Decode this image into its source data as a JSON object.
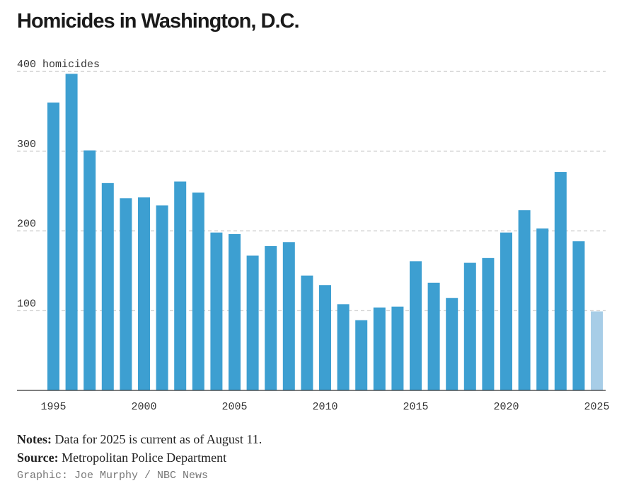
{
  "title": "Homicides in Washington, D.C.",
  "chart_data": {
    "type": "bar",
    "title": "Homicides in Washington, D.C.",
    "unit_label": "homicides",
    "ylim": [
      0,
      400
    ],
    "yticks": [
      100,
      200,
      300,
      400
    ],
    "xticks": [
      1995,
      2000,
      2005,
      2010,
      2015,
      2020,
      2025
    ],
    "grid": true,
    "categories": [
      1995,
      1996,
      1997,
      1998,
      1999,
      2000,
      2001,
      2002,
      2003,
      2004,
      2005,
      2006,
      2007,
      2008,
      2009,
      2010,
      2011,
      2012,
      2013,
      2014,
      2015,
      2016,
      2017,
      2018,
      2019,
      2020,
      2021,
      2022,
      2023,
      2024,
      2025
    ],
    "values": [
      361,
      397,
      301,
      260,
      241,
      242,
      232,
      262,
      248,
      198,
      196,
      169,
      181,
      186,
      144,
      132,
      108,
      88,
      104,
      105,
      162,
      135,
      116,
      160,
      166,
      198,
      226,
      203,
      274,
      187,
      99
    ],
    "colors": {
      "bar": "#3d9fd1",
      "partial_bar": "#a7cde7",
      "grid": "#c8c8c8",
      "axis": "#333333"
    },
    "partial_year": 2025
  },
  "notes": {
    "notes_label": "Notes:",
    "notes_text": "Data for 2025 is current as of August 11.",
    "source_label": "Source:",
    "source_text": "Metropolitan Police Department"
  },
  "credit": "Graphic: Joe Murphy / NBC News"
}
